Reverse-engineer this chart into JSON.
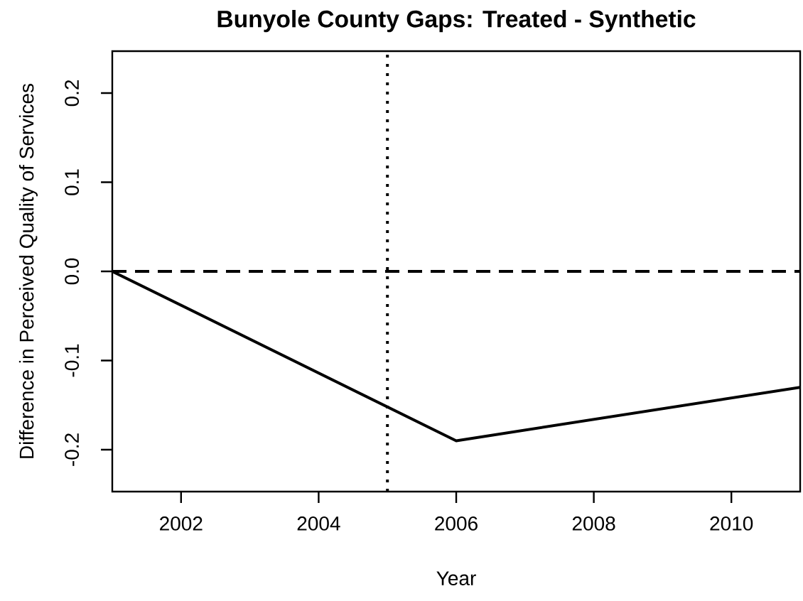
{
  "chart_data": {
    "type": "line",
    "title": "Bunyole County Gaps: Treated - Synthetic",
    "xlabel": "Year",
    "ylabel": "Difference in Perceived Quality of Services",
    "x": [
      2001,
      2006,
      2011
    ],
    "values": [
      0,
      -0.19,
      -0.13
    ],
    "color": "#000000",
    "xlim": [
      2001,
      2011
    ],
    "ylim": [
      -0.247,
      0.247
    ],
    "xticks": [
      2002,
      2004,
      2006,
      2008,
      2010
    ],
    "yticks": [
      -0.2,
      -0.1,
      {
        "value": 0,
        "label": "0.0"
      },
      0.1,
      0.2
    ],
    "ref_lines": [
      {
        "axis": "y",
        "value": 0,
        "line_style": "dashed",
        "color": "#000000"
      },
      {
        "axis": "x",
        "value": 2005,
        "line_style": "dotted",
        "color": "#000000"
      }
    ]
  }
}
